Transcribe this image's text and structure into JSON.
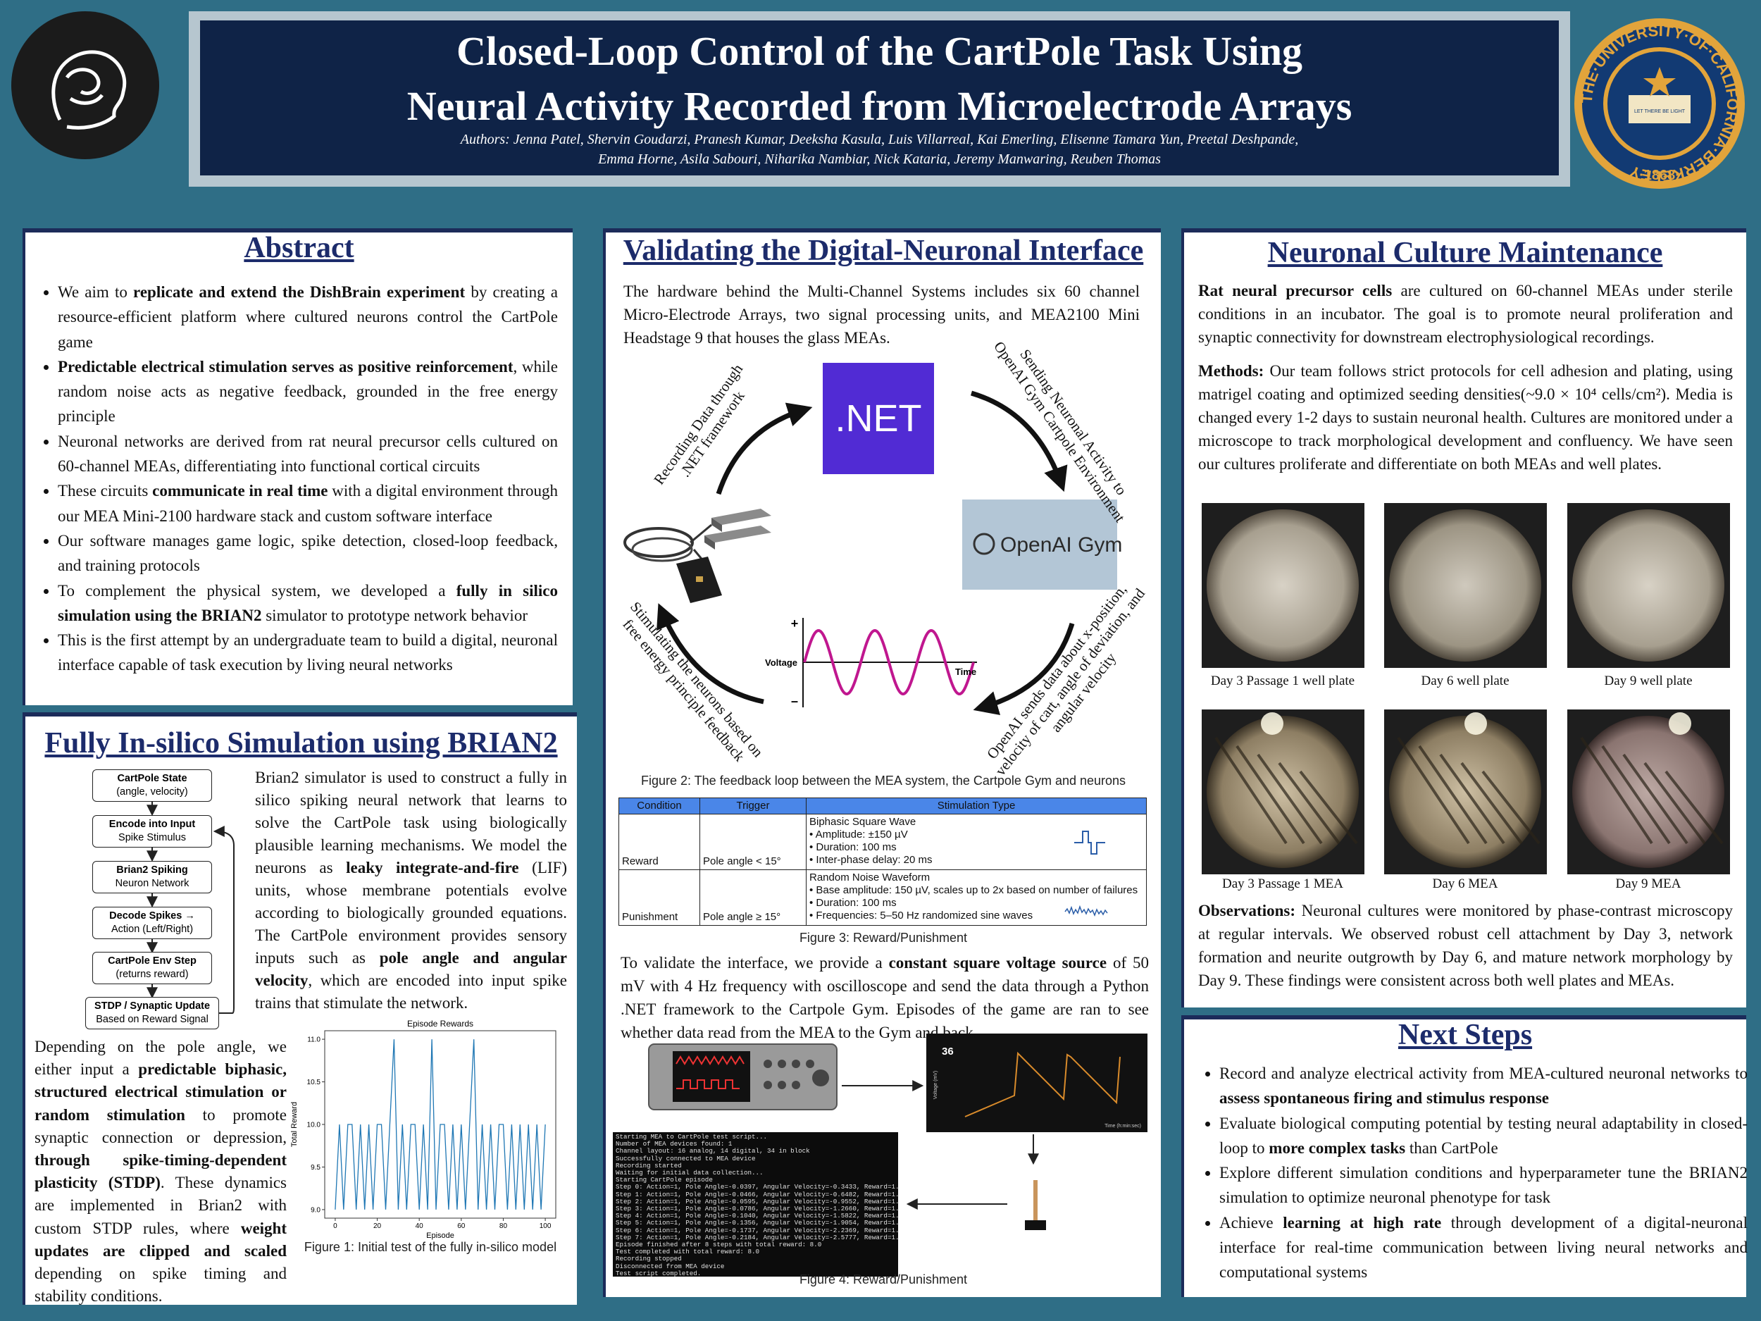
{
  "header": {
    "title_lines": [
      "Closed-Loop Control of the CartPole Task Using",
      "Neural Activity Recorded from Microelectrode Arrays"
    ],
    "authors_lines": [
      "Authors: Jenna Patel, Shervin Goudarzi, Pranesh Kumar, Deeksha Kasula, Luis Villarreal, Kai Emerling, Elisenne Tamara Yun, Preetal Deshpande,",
      "Emma Horne, Asila Sabouri, Niharika Nambiar, Nick Kataria, Jeremy Manwaring, Reuben Thomas"
    ],
    "seal": {
      "ring": "THE·UNIVERSITY·OF·CALIFORNIA·BERKELEY",
      "year": "·1868·",
      "motto": "LET THERE BE LIGHT"
    }
  },
  "abstract": {
    "heading": "Abstract",
    "bullets": [
      [
        "We aim to ",
        {
          "bold": "replicate and extend the DishBrain experiment"
        },
        " by creating a resource-efficient platform where cultured neurons control the CartPole game"
      ],
      [
        {
          "bold": "Predictable electrical stimulation serves as positive reinforcement"
        },
        ", while random noise acts as negative feedback, grounded in the free energy principle"
      ],
      [
        "Neuronal networks are derived from rat neural precursor cells cultured on 60-channel MEAs, differentiating into functional cortical circuits"
      ],
      [
        "These circuits ",
        {
          "bold": "communicate in real time"
        },
        " with a digital environment through our MEA Mini-2100 hardware stack and custom software interface"
      ],
      [
        "Our software manages game logic, spike detection, closed-loop feedback, and training protocols"
      ],
      [
        "To complement the physical system, we developed a ",
        {
          "bold": "fully in silico simulation using the BRIAN2"
        },
        " simulator to prototype network behavior"
      ],
      [
        "This is the first attempt by an undergraduate team to build a digital, neuronal interface capable of task execution by living neural networks"
      ]
    ]
  },
  "brian2": {
    "heading": "Fully In-silico Simulation using BRIAN2",
    "flow": [
      {
        "title": "CartPole State",
        "sub": "(angle, velocity)"
      },
      {
        "title": "Encode into Input",
        "sub": "Spike Stimulus"
      },
      {
        "title": "Brian2 Spiking",
        "sub": "Neuron Network"
      },
      {
        "title": "Decode Spikes →",
        "sub": "Action (Left/Right)"
      },
      {
        "title": "CartPole Env Step",
        "sub": "(returns reward)"
      },
      {
        "title": "STDP / Synaptic Update",
        "sub": "Based on Reward Signal"
      }
    ],
    "paragraph1": [
      "Brian2 simulator is used to construct a fully in silico spiking neural network that learns to solve the CartPole task using biologically plausible learning mechanisms. We model the neurons as ",
      {
        "bold": "leaky integrate-and-fire"
      },
      " (LIF) units, whose membrane potentials evolve according to biologically grounded equations. The CartPole environment provides sensory inputs such as ",
      {
        "bold": "pole angle and angular velocity"
      },
      ", which are encoded into input spike trains that stimulate the network."
    ],
    "paragraph2": [
      "Depending on the pole angle, we either input a ",
      {
        "bold": "predictable biphasic, structured electrical stimulation or random stimulation"
      },
      " to promote synaptic connection or depression, ",
      {
        "bold": "through spike-timing-dependent plasticity (STDP)"
      },
      ". These dynamics are implemented in Brian2 with custom STDP rules, where ",
      {
        "bold": "weight updates are clipped and scaled"
      },
      " depending on spike timing and stability conditions."
    ],
    "figure": {
      "type": "line",
      "title": "Episode Rewards",
      "x_label": "Episode",
      "y_label": "Total Reward",
      "color": "#1f77b4",
      "x": [
        0,
        2,
        4,
        6,
        8,
        10,
        12,
        14,
        16,
        18,
        20,
        22,
        24,
        26,
        28,
        30,
        32,
        34,
        36,
        38,
        40,
        42,
        44,
        46,
        48,
        50,
        52,
        54,
        56,
        58,
        60,
        62,
        64,
        66,
        68,
        70,
        72,
        74,
        76,
        78,
        80,
        82,
        84,
        86,
        88,
        90,
        92,
        94,
        96,
        98,
        100
      ],
      "values": [
        9,
        10,
        9,
        10,
        10,
        9,
        10,
        9,
        10,
        9,
        10,
        10,
        9,
        10,
        11,
        9,
        10,
        9,
        10,
        10,
        9,
        10,
        9,
        11,
        9,
        10,
        10,
        9,
        10,
        9,
        10,
        9,
        10,
        11,
        9,
        10,
        9,
        10,
        9,
        10,
        10,
        9,
        10,
        9,
        10,
        9,
        10,
        9,
        10,
        9,
        10
      ],
      "xlim": [
        -5,
        105
      ],
      "ylim": [
        8.9,
        11.1
      ],
      "xticks": [
        0,
        20,
        40,
        60,
        80,
        100
      ],
      "yticks": [
        {
          "value": 9,
          "label": "9.0"
        },
        {
          "value": 9.5,
          "label": "9.5"
        },
        {
          "value": 10,
          "label": "10.0"
        },
        {
          "value": 10.5,
          "label": "10.5"
        },
        {
          "value": 11,
          "label": "11.0"
        }
      ]
    },
    "caption": "Figure 1: Initial test of the fully in-silico model"
  },
  "interface": {
    "heading": "Validating the Digital-Neuronal Interface",
    "intro": "The hardware behind the Multi-Channel Systems includes six 60 channel Micro-Electrode Arrays, two signal processing units, and MEA2100 Mini Headstage 9 that houses the glass MEAs.",
    "net_label": ".NET",
    "gym_label": "OpenAI Gym",
    "loop_labels": [
      [
        "Recording Data through",
        ".NET framework"
      ],
      [
        "Sending Neuronal Activity to",
        "OpenAI Gym Cartpole Environment"
      ],
      [
        "OpenAI sends data about x-position,",
        "velocity of cart, angle of deviation, and",
        "angular velocity"
      ],
      [
        "Stimulating the neurons based on",
        "free energy principle feedback"
      ]
    ],
    "voltage_plot": {
      "plus": "+",
      "minus": "–",
      "y_label": "Voltage",
      "x_label": "Time"
    },
    "figure2_caption": "Figure 2: The feedback loop between the MEA system, the Cartpole Gym and neurons",
    "table": {
      "headers": [
        "Condition",
        "Trigger",
        "Stimulation Type"
      ],
      "rows": [
        {
          "condition": "Reward",
          "trigger": "Pole angle < 15°",
          "stim_title": "Biphasic Square Wave",
          "stim_items": [
            "• Amplitude: ±150 µV",
            "• Duration: 100 ms",
            "• Inter-phase delay: 20 ms"
          ]
        },
        {
          "condition": "Punishment",
          "trigger": "Pole angle ≥ 15°",
          "stim_title": "Random Noise Waveform",
          "stim_items": [
            "• Base amplitude: 150 µV, scales up to 2x based on number of failures",
            "• Duration: 100 ms",
            "• Frequencies: 5–50 Hz randomized sine waves"
          ]
        }
      ]
    },
    "figure3_caption": "Figure 3: Reward/Punishment",
    "paragraph": [
      "To validate the interface, we provide a ",
      {
        "bold": "constant square voltage source"
      },
      " of 50 mV with 4 Hz frequency with oscilloscope and send the data through a Python .NET framework to the Cartpole Gym. Episodes of the game are ran to see whether data read from the MEA to the Gym and back."
    ],
    "scope": {
      "reading": "36",
      "y_label": "Voltage (mV)",
      "x_label": "Time (h:min:sec)"
    },
    "terminal": [
      "Starting MEA to CartPole test script...",
      "Number of MEA devices found: 1",
      "Channel layout: 16 analog, 14 digital, 34 in block",
      "Successfully connected to MEA device",
      "Recording started",
      "Waiting for initial data collection...",
      "Starting CartPole episode",
      "Step 0: Action=1, Pole Angle=-0.0397, Angular Velocity=-0.3433, Reward=1.0",
      "Step 1: Action=1, Pole Angle=-0.0466, Angular Velocity=-0.6482, Reward=1.0",
      "Step 2: Action=1, Pole Angle=-0.0595, Angular Velocity=-0.9552, Reward=1.0",
      "Step 3: Action=1, Pole Angle=-0.0786, Angular Velocity=-1.2660, Reward=1.0",
      "Step 4: Action=1, Pole Angle=-0.1040, Angular Velocity=-1.5822, Reward=1.0",
      "Step 5: Action=1, Pole Angle=-0.1356, Angular Velocity=-1.9054, Reward=1.0",
      "Step 6: Action=1, Pole Angle=-0.1737, Angular Velocity=-2.2369, Reward=1.0",
      "Step 7: Action=1, Pole Angle=-0.2184, Angular Velocity=-2.5777, Reward=1.0",
      "Episode finished after 8 steps with total reward: 8.0",
      "Test completed with total reward: 8.0",
      "Recording stopped",
      "Disconnected from MEA device",
      "Test script completed."
    ],
    "figure4_caption": "Figure 4: Reward/Punishment"
  },
  "culture": {
    "heading": "Neuronal Culture Maintenance",
    "paragraph1": [
      {
        "bold": "Rat neural precursor cells"
      },
      " are cultured on 60-channel MEAs under sterile conditions in an incubator. The goal is to promote neural proliferation and synaptic connectivity for downstream electrophysiological recordings."
    ],
    "paragraph2": [
      {
        "bold": "Methods:"
      },
      " Our team follows strict protocols for cell adhesion and plating, using matrigel coating and optimized seeding densities(~9.0 × 10⁴ cells/cm²). Media is changed every 1-2 days to sustain neuronal health. Cultures are monitored under a microscope to track morphological development and confluency. We have seen our cultures proliferate and differentiate on both MEAs and well plates."
    ],
    "image_captions": [
      "Day 3 Passage 1 well plate",
      "Day 6 well plate",
      "Day 9 well plate",
      "Day 3 Passage 1 MEA",
      "Day 6 MEA",
      "Day 9 MEA"
    ],
    "paragraph3": [
      {
        "bold": "Observations:"
      },
      " Neuronal cultures were monitored by phase-contrast microscopy at regular intervals. We observed robust cell attachment by Day 3, network formation and neurite outgrowth by Day 6, and mature network morphology by Day 9. These findings were consistent across both well plates and MEAs."
    ]
  },
  "next_steps": {
    "heading": "Next Steps",
    "bullets": [
      [
        "Record and analyze electrical activity from MEA-cultured neuronal networks to ",
        {
          "bold": "assess spontaneous firing and stimulus response"
        }
      ],
      [
        "Evaluate biological computing potential by testing neural adaptability in closed-loop to ",
        {
          "bold": "more complex tasks"
        },
        " than CartPole"
      ],
      [
        "Explore different simulation conditions and hyperparameter tune the BRIAN2 simulation to optimize neuronal phenotype for task"
      ],
      [
        "Achieve ",
        {
          "bold": "learning at high rate"
        },
        " through development of a digital-neuronal interface for real-time communication between living neural networks and computational systems"
      ]
    ]
  }
}
